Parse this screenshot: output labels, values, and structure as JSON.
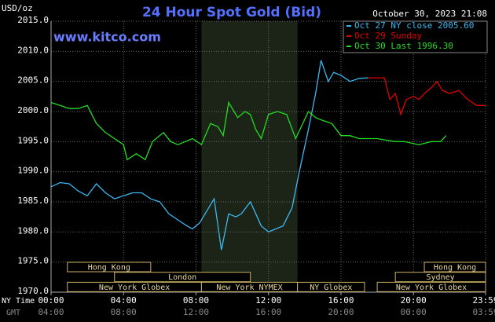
{
  "chart_data": {
    "type": "line",
    "title": "24 Hour Spot Gold (Bid)",
    "website": "www.kitco.com",
    "y_label": "USD/oz",
    "timestamp": "October 30, 2023 21:08",
    "x_label": "NY Time",
    "x2_label": "GMT",
    "xlim": [
      0,
      23.98
    ],
    "ylim": [
      1970,
      2015
    ],
    "yticks": [
      {
        "value": 1970,
        "label": "1970.0"
      },
      {
        "value": 1975,
        "label": "1975.0"
      },
      {
        "value": 1980,
        "label": "1980.0"
      },
      {
        "value": 1985,
        "label": "1985.0"
      },
      {
        "value": 1990,
        "label": "1990.0"
      },
      {
        "value": 1995,
        "label": "1995.0"
      },
      {
        "value": 2000,
        "label": "2000.0"
      },
      {
        "value": 2005,
        "label": "2005.0"
      },
      {
        "value": 2010,
        "label": "2010.0"
      },
      {
        "value": 2015,
        "label": "2015.0"
      }
    ],
    "xticks": [
      {
        "value": 0,
        "label": "00:00"
      },
      {
        "value": 4,
        "label": "04:00"
      },
      {
        "value": 8,
        "label": "08:00"
      },
      {
        "value": 12,
        "label": "12:00"
      },
      {
        "value": 16,
        "label": "16:00"
      },
      {
        "value": 20,
        "label": "20:00"
      },
      {
        "value": 23.98,
        "label": "23:59"
      }
    ],
    "x2ticks": [
      {
        "value": 0,
        "label": "04:00"
      },
      {
        "value": 4,
        "label": "08:00"
      },
      {
        "value": 8,
        "label": "12:00"
      },
      {
        "value": 12,
        "label": "16:00"
      },
      {
        "value": 16,
        "label": "20:00"
      },
      {
        "value": 20,
        "label": "00:00"
      },
      {
        "value": 23.98,
        "label": "03:59"
      }
    ],
    "grid": true,
    "highlight": [
      8.3,
      13.6
    ],
    "series": [
      {
        "name": "Oct 27 NY close 2005.60",
        "color": "#3cb8f0",
        "x": [
          0,
          0.5,
          1,
          1.5,
          2,
          2.5,
          3,
          3.5,
          4,
          4.5,
          5,
          5.5,
          6,
          6.5,
          7,
          7.5,
          7.8,
          8.2,
          8.5,
          9,
          9.4,
          9.8,
          10.2,
          10.5,
          11,
          11.3,
          11.6,
          12,
          12.4,
          12.8,
          13.3,
          13.7,
          14.2,
          14.6,
          14.9,
          15.3,
          15.6,
          16,
          16.5,
          17,
          17.5
        ],
        "values": [
          1987.5,
          1988.2,
          1988,
          1986.8,
          1986,
          1988,
          1986.5,
          1985.5,
          1986,
          1986.5,
          1986.5,
          1985.5,
          1985,
          1983,
          1982,
          1981,
          1980.5,
          1981.5,
          1983,
          1985.5,
          1977,
          1983,
          1982.5,
          1983,
          1985,
          1983,
          1981,
          1980,
          1980.5,
          1981,
          1984,
          1990,
          1997,
          2003,
          2008.5,
          2005,
          2006.5,
          2006,
          2005,
          2005.5,
          2005.6
        ]
      },
      {
        "name": "Oct 29 Sunday",
        "color": "#e00000",
        "x": [
          17.5,
          18.4,
          18.7,
          19,
          19.3,
          19.6,
          20,
          20.3,
          20.6,
          21,
          21.3,
          21.6,
          22,
          22.5,
          23,
          23.5,
          23.98
        ],
        "values": [
          2005.6,
          2005.6,
          2002,
          2003,
          1999.5,
          2002,
          2002.5,
          2002,
          2003,
          2004,
          2005,
          2003.5,
          2003,
          2003.5,
          2002,
          2001,
          2001
        ]
      },
      {
        "name": "Oct 30 Last 1996.30",
        "color": "#22dd22",
        "x": [
          0,
          0.5,
          1,
          1.5,
          2,
          2.5,
          3,
          3.5,
          4,
          4.2,
          4.7,
          5.2,
          5.6,
          6.2,
          6.6,
          7,
          7.4,
          7.8,
          8.3,
          8.8,
          9.2,
          9.5,
          9.8,
          10.3,
          10.7,
          11,
          11.3,
          11.6,
          12,
          12.5,
          13,
          13.5,
          14.2,
          14.6,
          15,
          15.5,
          16,
          16.5,
          17,
          18,
          19,
          19.5,
          20.3,
          21,
          21.5,
          21.8
        ],
        "values": [
          2001.5,
          2001,
          2000.5,
          2000.5,
          2001,
          1998,
          1996.5,
          1995.5,
          1994.5,
          1992,
          1993,
          1992,
          1995,
          1996.5,
          1995,
          1994.5,
          1995,
          1995.5,
          1994.5,
          1998,
          1997.5,
          1996,
          2001.5,
          1999,
          2000,
          1999.5,
          1997,
          1995.5,
          1999.5,
          2000,
          1999.5,
          1995.5,
          2000,
          1999,
          1998.5,
          1998,
          1996,
          1996,
          1995.5,
          1995.5,
          1995,
          1995,
          1994.5,
          1995,
          1995,
          1996
        ]
      }
    ],
    "sessions": [
      {
        "label": "Hong Kong",
        "row": 1,
        "start": 0.9,
        "end": 5.5
      },
      {
        "label": "Hong Kong",
        "row": 1,
        "start": 20.6,
        "end": 23.98
      },
      {
        "label": "London",
        "row": 2,
        "start": 3.5,
        "end": 11
      },
      {
        "label": "Sydney",
        "row": 2,
        "start": 19,
        "end": 23.98
      },
      {
        "label": "New York Globex",
        "row": 3,
        "start": 0.9,
        "end": 8.3
      },
      {
        "label": "New York NYMEX",
        "row": 3,
        "start": 8.3,
        "end": 13.6
      },
      {
        "label": "NY Globex",
        "row": 3,
        "start": 13.6,
        "end": 17.3
      },
      {
        "label": "New York Globex",
        "row": 3,
        "start": 18,
        "end": 23.98
      }
    ]
  }
}
